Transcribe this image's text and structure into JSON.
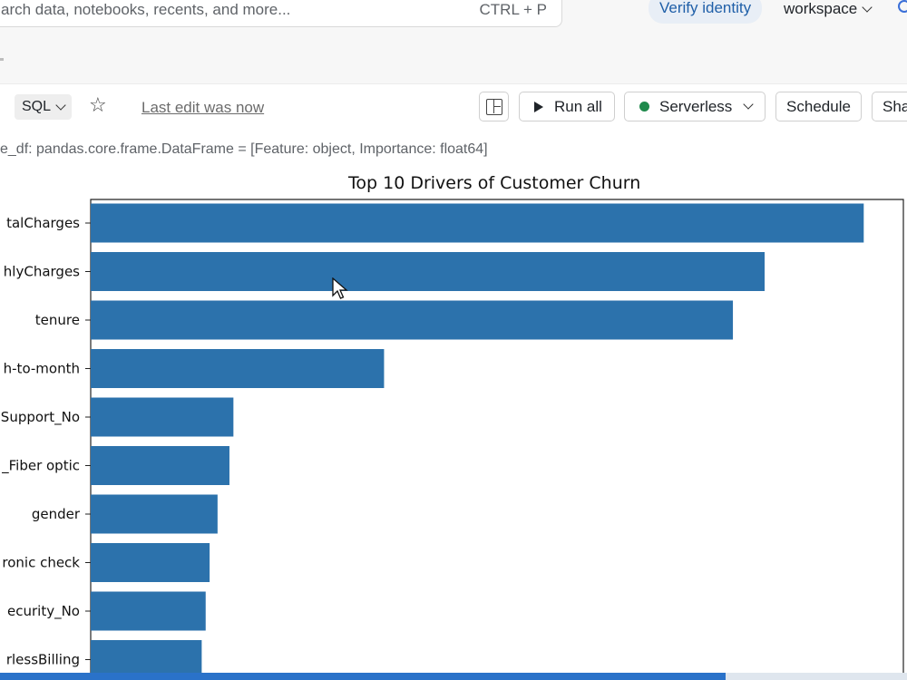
{
  "header": {
    "search_placeholder": "arch data, notebooks, recents, and more...",
    "search_shortcut": "CTRL + P",
    "verify_identity": "Verify identity",
    "workspace": "workspace"
  },
  "toolbar": {
    "language": "SQL",
    "last_edit": "Last edit was now",
    "run_all": "Run all",
    "compute": "Serverless",
    "schedule": "Schedule",
    "share": "Sha"
  },
  "output": {
    "df_info": "e_df:  pandas.core.frame.DataFrame = [Feature: object, Importance: float64]"
  },
  "colors": {
    "bar": "#2c72ac",
    "accent": "#2a72c9",
    "status_green": "#1f8a4c"
  },
  "progress": {
    "fraction": 0.8
  },
  "chart_data": {
    "type": "bar",
    "orientation": "horizontal",
    "title": "Top 10 Drivers of Customer Churn",
    "categories": [
      "talCharges",
      "hlyCharges",
      "tenure",
      "h-to-month",
      "Support_No",
      "_Fiber optic",
      "gender",
      "ronic check",
      "ecurity_No",
      "rlessBilling"
    ],
    "values": [
      0.195,
      0.17,
      0.162,
      0.074,
      0.036,
      0.035,
      0.032,
      0.03,
      0.029,
      0.028
    ],
    "xlim": [
      0,
      0.205
    ],
    "grid": false,
    "legend": "none"
  }
}
